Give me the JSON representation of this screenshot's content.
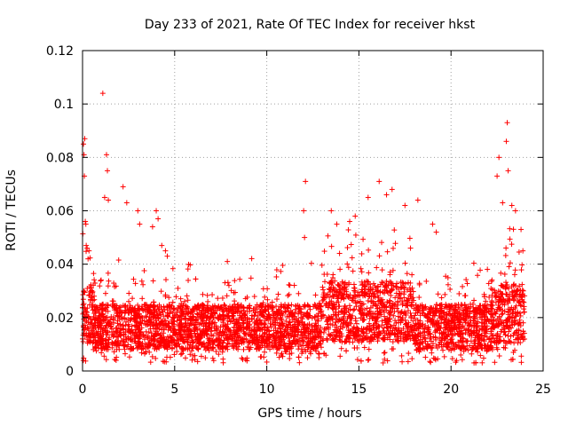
{
  "chart_data": {
    "type": "scatter",
    "title": "Day 233 of 2021, Rate Of TEC Index for receiver hkst",
    "xlabel": "GPS time / hours",
    "ylabel": "ROTI / TECUs",
    "xlim": [
      0,
      25
    ],
    "ylim": [
      0,
      0.12
    ],
    "xticks": [
      0,
      5,
      10,
      15,
      20,
      25
    ],
    "yticks": [
      0,
      0.02,
      0.04,
      0.06,
      0.08,
      0.1,
      0.12
    ],
    "xtick_labels": [
      "0",
      "5",
      "10",
      "15",
      "20",
      "25"
    ],
    "ytick_labels": [
      "0",
      "0.02",
      "0.04",
      "0.06",
      "0.08",
      "0.1",
      "0.12"
    ],
    "grid": true,
    "marker": "+",
    "color": "#ff0000",
    "x_range_of_data": [
      0,
      24
    ],
    "typical_band": [
      0.008,
      0.025
    ],
    "series": [
      {
        "points": [
          [
            0.05,
            0.085
          ],
          [
            0.08,
            0.081
          ],
          [
            0.1,
            0.073
          ],
          [
            0.12,
            0.087
          ],
          [
            0.15,
            0.056
          ],
          [
            0.18,
            0.055
          ],
          [
            0.2,
            0.047
          ],
          [
            0.25,
            0.046
          ],
          [
            0.3,
            0.042
          ],
          [
            0.35,
            0.045
          ],
          [
            1.1,
            0.104
          ],
          [
            1.3,
            0.081
          ],
          [
            1.35,
            0.075
          ],
          [
            1.4,
            0.064
          ],
          [
            1.2,
            0.065
          ],
          [
            2.2,
            0.069
          ],
          [
            2.4,
            0.063
          ],
          [
            3.0,
            0.06
          ],
          [
            3.1,
            0.055
          ],
          [
            3.8,
            0.054
          ],
          [
            4.0,
            0.06
          ],
          [
            4.1,
            0.057
          ],
          [
            4.3,
            0.047
          ],
          [
            4.5,
            0.045
          ],
          [
            4.6,
            0.043
          ],
          [
            12.1,
            0.071
          ],
          [
            12.0,
            0.06
          ],
          [
            12.05,
            0.05
          ],
          [
            13.5,
            0.06
          ],
          [
            13.8,
            0.055
          ],
          [
            14.5,
            0.056
          ],
          [
            14.8,
            0.058
          ],
          [
            15.5,
            0.065
          ],
          [
            16.1,
            0.071
          ],
          [
            16.5,
            0.066
          ],
          [
            16.8,
            0.068
          ],
          [
            17.5,
            0.062
          ],
          [
            18.2,
            0.064
          ],
          [
            19.0,
            0.055
          ],
          [
            19.2,
            0.052
          ],
          [
            22.5,
            0.073
          ],
          [
            22.6,
            0.08
          ],
          [
            22.8,
            0.063
          ],
          [
            23.0,
            0.086
          ],
          [
            23.05,
            0.093
          ],
          [
            23.1,
            0.075
          ],
          [
            23.3,
            0.062
          ],
          [
            23.5,
            0.06
          ],
          [
            23.8,
            0.053
          ],
          [
            23.9,
            0.045
          ]
        ]
      }
    ]
  }
}
